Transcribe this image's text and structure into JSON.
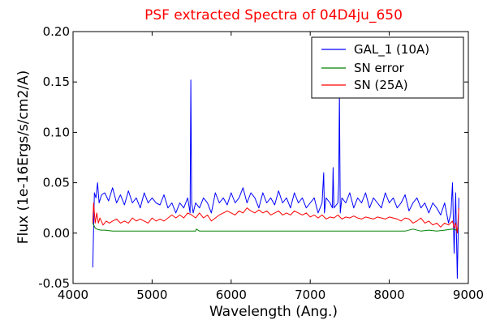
{
  "chart_data": {
    "type": "line",
    "title": "PSF extracted Spectra of 04D4ju_650",
    "xlabel": "Wavelength (Ang.)",
    "ylabel": "Flux (1e-16Ergs/s/cm2/A)",
    "xlim": [
      4000,
      9000
    ],
    "ylim": [
      -0.05,
      0.2
    ],
    "xticks": [
      4000,
      5000,
      6000,
      7000,
      8000,
      9000
    ],
    "xtick_labels": [
      "4000",
      "5000",
      "6000",
      "7000",
      "8000",
      "9000"
    ],
    "yticks": [
      -0.05,
      0.0,
      0.05,
      0.1,
      0.15,
      0.2
    ],
    "ytick_labels": [
      "-0.05",
      "0.00",
      "0.05",
      "0.10",
      "0.15",
      "0.20"
    ],
    "grid": false,
    "legend_position": "top-right",
    "series": [
      {
        "name": "GAL_1 (10A)",
        "color": "#0000ff",
        "x": [
          4250,
          4270,
          4290,
          4310,
          4330,
          4360,
          4400,
          4450,
          4500,
          4550,
          4600,
          4650,
          4700,
          4750,
          4800,
          4850,
          4900,
          4950,
          5000,
          5050,
          5100,
          5150,
          5200,
          5250,
          5300,
          5350,
          5400,
          5450,
          5480,
          5490,
          5500,
          5510,
          5520,
          5550,
          5600,
          5650,
          5700,
          5750,
          5800,
          5850,
          5900,
          5950,
          6000,
          6050,
          6100,
          6150,
          6200,
          6250,
          6300,
          6350,
          6400,
          6450,
          6500,
          6550,
          6600,
          6650,
          6700,
          6750,
          6800,
          6850,
          6900,
          6950,
          7000,
          7050,
          7100,
          7150,
          7170,
          7180,
          7200,
          7250,
          7280,
          7290,
          7300,
          7350,
          7360,
          7370,
          7380,
          7400,
          7450,
          7500,
          7550,
          7600,
          7650,
          7700,
          7750,
          7800,
          7850,
          7900,
          7950,
          8000,
          8050,
          8100,
          8150,
          8200,
          8250,
          8300,
          8350,
          8400,
          8450,
          8500,
          8550,
          8600,
          8650,
          8700,
          8750,
          8780,
          8800,
          8820,
          8840,
          8860,
          8880
        ],
        "y": [
          -0.034,
          0.04,
          0.035,
          0.05,
          0.03,
          0.038,
          0.04,
          0.032,
          0.045,
          0.03,
          0.038,
          0.028,
          0.042,
          0.03,
          0.035,
          0.025,
          0.04,
          0.03,
          0.035,
          0.03,
          0.028,
          0.038,
          0.025,
          0.03,
          0.02,
          0.03,
          0.025,
          0.035,
          0.02,
          0.152,
          0.03,
          0.025,
          0.02,
          0.03,
          0.025,
          0.035,
          0.03,
          0.02,
          0.04,
          0.03,
          0.035,
          0.028,
          0.04,
          0.03,
          0.035,
          0.045,
          0.03,
          0.04,
          0.035,
          0.025,
          0.04,
          0.03,
          0.035,
          0.028,
          0.042,
          0.03,
          0.035,
          0.025,
          0.04,
          0.03,
          0.035,
          0.025,
          0.03,
          0.035,
          0.02,
          0.03,
          0.06,
          0.02,
          0.035,
          0.03,
          0.025,
          0.065,
          0.025,
          0.03,
          0.05,
          0.14,
          0.02,
          0.035,
          0.03,
          0.04,
          0.025,
          0.035,
          0.03,
          0.04,
          0.025,
          0.035,
          0.03,
          0.025,
          0.04,
          0.03,
          0.035,
          0.025,
          0.03,
          0.038,
          0.022,
          0.03,
          0.035,
          0.025,
          0.03,
          0.02,
          0.03,
          0.025,
          0.018,
          0.03,
          0.01,
          0.02,
          0.05,
          -0.02,
          0.04,
          -0.045,
          0.035
        ]
      },
      {
        "name": "SN error",
        "color": "#008000",
        "x": [
          4250,
          4280,
          4300,
          4350,
          4400,
          4500,
          4600,
          4700,
          4800,
          4900,
          5000,
          5100,
          5200,
          5300,
          5400,
          5500,
          5550,
          5560,
          5600,
          5700,
          5800,
          5900,
          6000,
          6200,
          6400,
          6600,
          6800,
          7000,
          7200,
          7400,
          7600,
          7800,
          8000,
          8200,
          8300,
          8400,
          8500,
          8600,
          8700,
          8800,
          8850,
          8880
        ],
        "y": [
          0.01,
          0.005,
          0.004,
          0.003,
          0.003,
          0.002,
          0.002,
          0.002,
          0.002,
          0.002,
          0.002,
          0.002,
          0.002,
          0.002,
          0.002,
          0.002,
          0.002,
          0.004,
          0.002,
          0.002,
          0.002,
          0.002,
          0.002,
          0.002,
          0.002,
          0.002,
          0.002,
          0.002,
          0.002,
          0.002,
          0.002,
          0.002,
          0.002,
          0.002,
          0.004,
          0.002,
          0.003,
          0.002,
          0.003,
          0.004,
          0.003,
          0.005
        ]
      },
      {
        "name": "SN (25A)",
        "color": "#ff0000",
        "x": [
          4250,
          4260,
          4280,
          4300,
          4320,
          4340,
          4380,
          4420,
          4460,
          4500,
          4550,
          4600,
          4650,
          4700,
          4750,
          4800,
          4850,
          4900,
          4950,
          5000,
          5050,
          5100,
          5150,
          5200,
          5250,
          5300,
          5350,
          5400,
          5450,
          5500,
          5550,
          5600,
          5650,
          5700,
          5750,
          5800,
          5850,
          5900,
          5950,
          6000,
          6050,
          6100,
          6150,
          6200,
          6250,
          6300,
          6350,
          6400,
          6450,
          6500,
          6550,
          6600,
          6650,
          6700,
          6750,
          6800,
          6850,
          6900,
          6950,
          7000,
          7050,
          7100,
          7150,
          7200,
          7250,
          7300,
          7350,
          7400,
          7450,
          7500,
          7550,
          7600,
          7650,
          7700,
          7750,
          7800,
          7850,
          7900,
          7950,
          8000,
          8050,
          8100,
          8150,
          8200,
          8250,
          8300,
          8350,
          8400,
          8450,
          8500,
          8550,
          8600,
          8650,
          8700,
          8750,
          8800,
          8820,
          8840,
          8860,
          8880
        ],
        "y": [
          0.01,
          0.03,
          0.01,
          0.02,
          0.01,
          0.015,
          0.008,
          0.012,
          0.01,
          0.012,
          0.014,
          0.01,
          0.012,
          0.01,
          0.015,
          0.012,
          0.014,
          0.012,
          0.01,
          0.015,
          0.012,
          0.014,
          0.012,
          0.015,
          0.018,
          0.015,
          0.018,
          0.015,
          0.02,
          0.018,
          0.015,
          0.02,
          0.015,
          0.018,
          0.012,
          0.015,
          0.018,
          0.02,
          0.022,
          0.02,
          0.018,
          0.022,
          0.02,
          0.025,
          0.022,
          0.02,
          0.023,
          0.02,
          0.022,
          0.018,
          0.02,
          0.022,
          0.018,
          0.02,
          0.018,
          0.022,
          0.02,
          0.018,
          0.02,
          0.016,
          0.018,
          0.015,
          0.018,
          0.014,
          0.016,
          0.015,
          0.018,
          0.014,
          0.016,
          0.015,
          0.017,
          0.015,
          0.014,
          0.016,
          0.015,
          0.014,
          0.016,
          0.015,
          0.014,
          0.016,
          0.015,
          0.014,
          0.012,
          0.015,
          0.014,
          0.01,
          0.012,
          0.015,
          0.01,
          0.012,
          0.008,
          0.01,
          0.006,
          0.01,
          0.008,
          0.012,
          0.005,
          0.01,
          0.0,
          0.025
        ]
      }
    ]
  }
}
